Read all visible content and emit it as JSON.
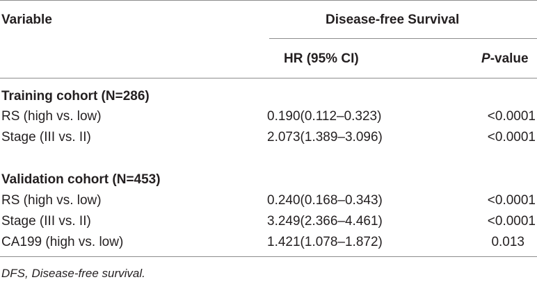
{
  "table": {
    "header": {
      "variable_label": "Variable",
      "group_label": "Disease-free Survival",
      "hr_label": "HR (95% CI)",
      "p_label_italic": "P",
      "p_label_rest": "-value"
    },
    "sections": [
      {
        "title": "Training cohort (N=286)",
        "rows": [
          {
            "variable": "RS (high vs. low)",
            "hr": "0.190(0.112–0.323)",
            "p": "<0.0001"
          },
          {
            "variable": "Stage (III vs. II)",
            "hr": "2.073(1.389–3.096)",
            "p": "<0.0001"
          }
        ]
      },
      {
        "title": "Validation cohort (N=453)",
        "rows": [
          {
            "variable": "RS (high vs. low)",
            "hr": "0.240(0.168–0.343)",
            "p": "<0.0001"
          },
          {
            "variable": "Stage (III vs. II)",
            "hr": "3.249(2.366–4.461)",
            "p": "<0.0001"
          },
          {
            "variable": "CA199 (high vs. low)",
            "hr": "1.421(1.078–1.872)",
            "p": "0.013"
          }
        ]
      }
    ],
    "footnote": "DFS, Disease-free survival."
  }
}
